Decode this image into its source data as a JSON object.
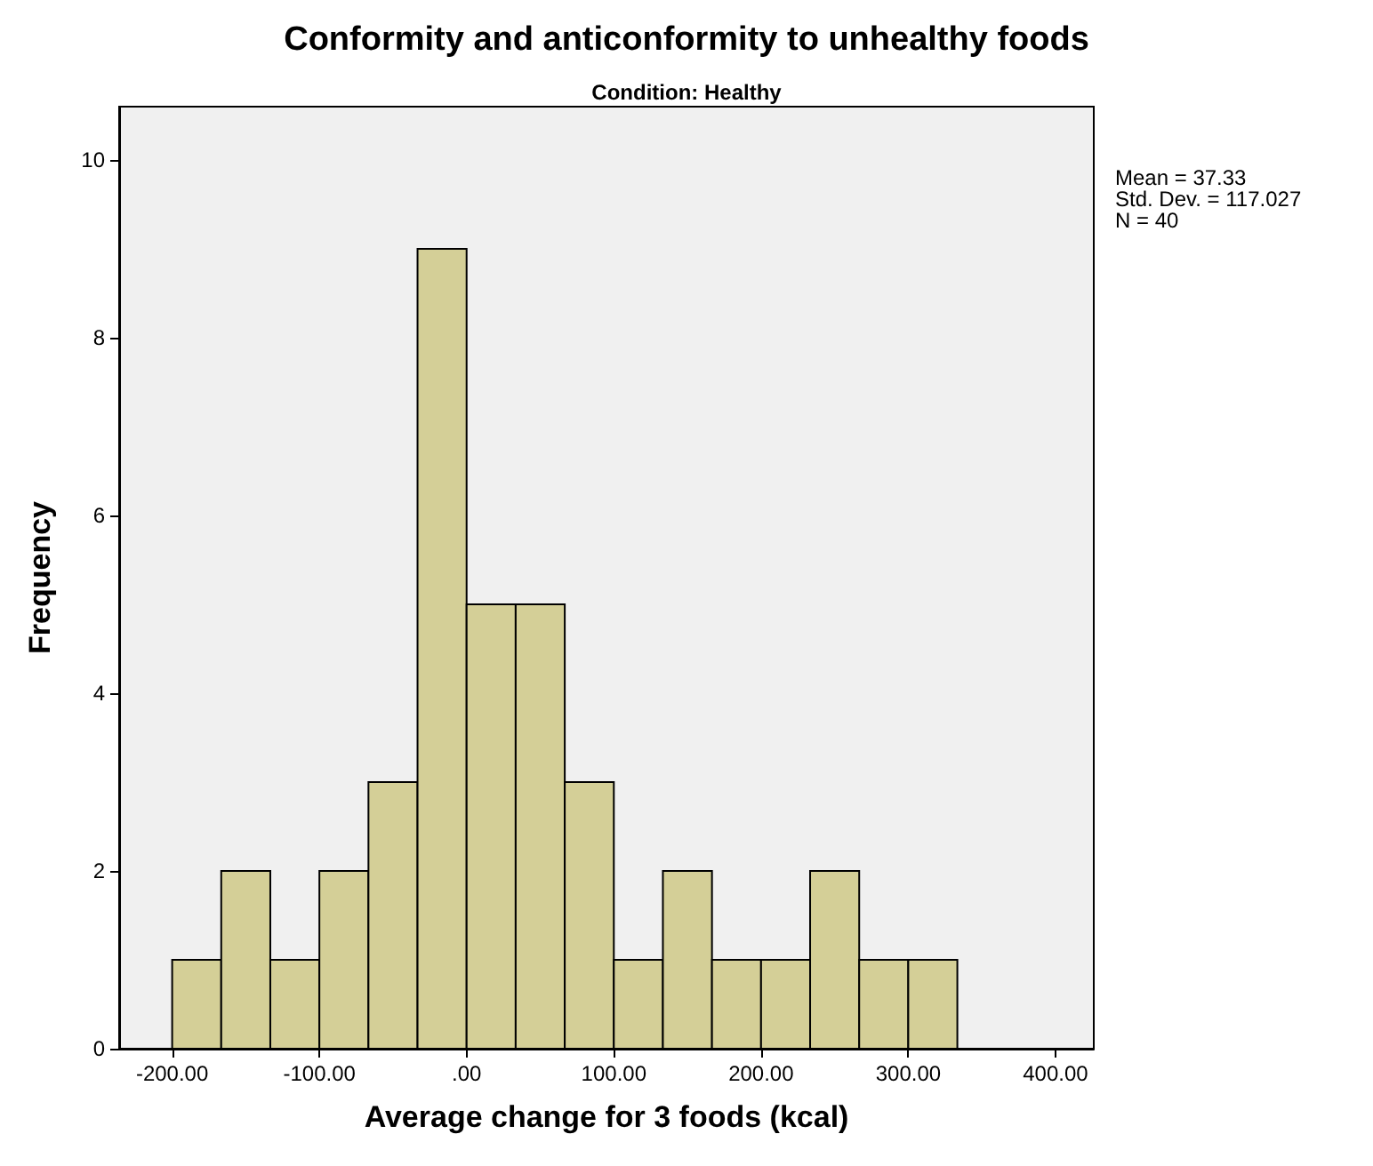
{
  "chart_data": {
    "type": "histogram",
    "title": "Conformity and anticonformity to unhealthy foods",
    "subtitle": "Condition: Healthy",
    "xlabel": "Average change for 3 foods (kcal)",
    "ylabel": "Frequency",
    "bins": [
      -200,
      -166.67,
      -133.33,
      -100,
      -66.67,
      -33.33,
      0,
      33.33,
      66.67,
      100,
      133.33,
      166.67,
      200,
      233.33,
      266.67,
      300,
      333.33
    ],
    "values": [
      1,
      2,
      1,
      2,
      3,
      9,
      5,
      5,
      3,
      1,
      2,
      1,
      1,
      2,
      1,
      1
    ],
    "color": "#d4cf97",
    "xlim": [
      -236,
      426
    ],
    "xticks": [
      {
        "value": -200,
        "label": "-200.00"
      },
      {
        "value": -100,
        "label": "-100.00"
      },
      {
        "value": 0,
        "label": ".00"
      },
      {
        "value": 100,
        "label": "100.00"
      },
      {
        "value": 200,
        "label": "200.00"
      },
      {
        "value": 300,
        "label": "300.00"
      },
      {
        "value": 400,
        "label": "400.00"
      }
    ],
    "ylim": [
      0,
      10.6
    ],
    "yticks": [
      0,
      2,
      4,
      6,
      8,
      10
    ],
    "grid": false,
    "annotations": [
      "Mean = 37.33",
      "Std. Dev. = 117.027",
      "N = 40"
    ]
  }
}
